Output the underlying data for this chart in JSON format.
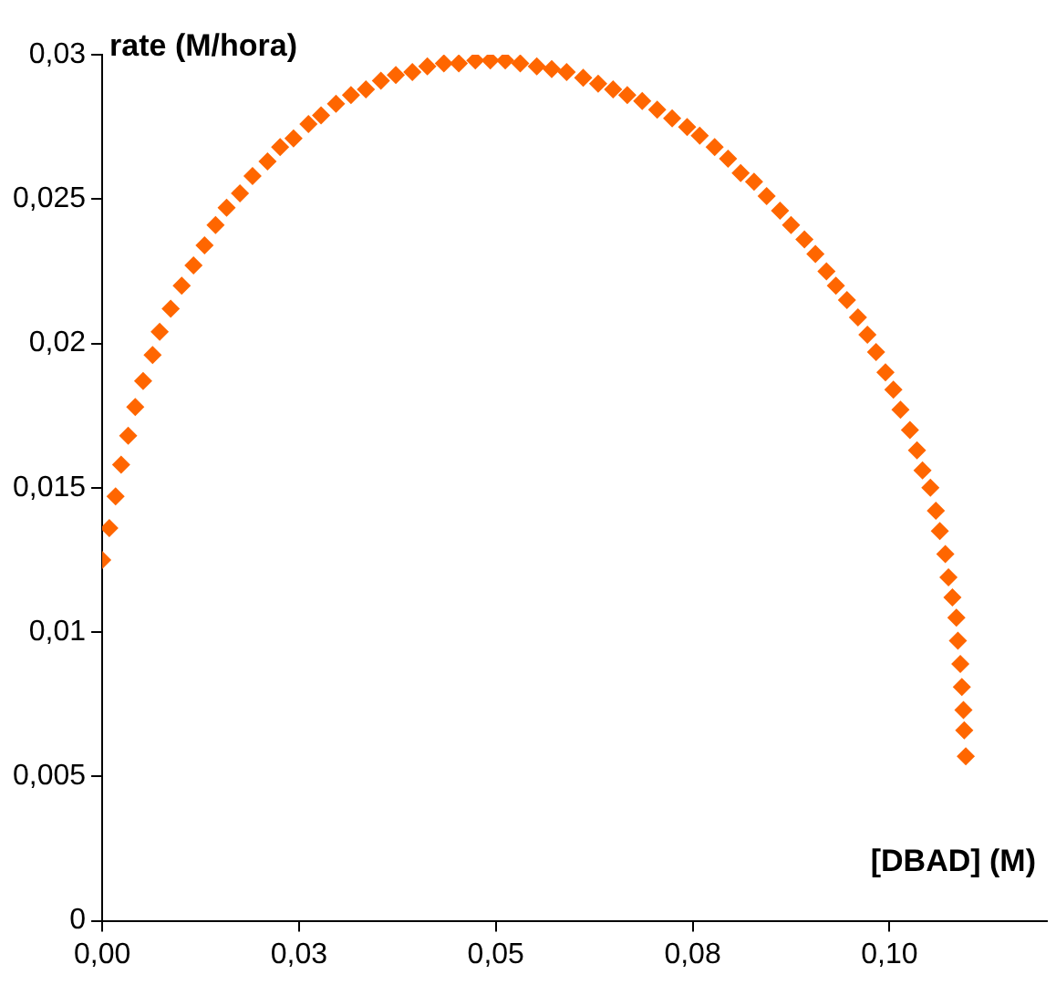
{
  "chart_data": {
    "type": "scatter",
    "xlabel": "[DBAD] (M)",
    "ylabel": "rate (M/hora)",
    "marker": "diamond",
    "grid": false,
    "legend": false,
    "xlim": [
      0,
      0.12
    ],
    "xticks": [
      {
        "value": 0,
        "label": "0,00"
      },
      {
        "value": 0.025,
        "label": "0,03"
      },
      {
        "value": 0.05,
        "label": "0,05"
      },
      {
        "value": 0.075,
        "label": "0,08"
      },
      {
        "value": 0.1,
        "label": "0,10"
      }
    ],
    "ylim": [
      0,
      0.03
    ],
    "yticks": [
      0,
      {
        "value": 0.005,
        "label": "0,005"
      },
      {
        "value": 0.01,
        "label": "0,01"
      },
      {
        "value": 0.015,
        "label": "0,015"
      },
      {
        "value": 0.02,
        "label": "0,02"
      },
      {
        "value": 0.025,
        "label": "0,025"
      },
      {
        "value": 0.03,
        "label": "0,03"
      }
    ],
    "series": [
      {
        "color": "#ff6600",
        "x": [
          0,
          0.0009,
          0.0017,
          0.0024,
          0.0033,
          0.0042,
          0.0052,
          0.0064,
          0.0073,
          0.0087,
          0.0101,
          0.0116,
          0.013,
          0.0144,
          0.0158,
          0.0175,
          0.0191,
          0.021,
          0.0226,
          0.0243,
          0.0262,
          0.0278,
          0.0297,
          0.0316,
          0.0335,
          0.0354,
          0.0373,
          0.0394,
          0.0413,
          0.0434,
          0.0453,
          0.0474,
          0.0493,
          0.0512,
          0.0531,
          0.0552,
          0.0571,
          0.059,
          0.0611,
          0.063,
          0.0649,
          0.0667,
          0.0686,
          0.0705,
          0.0724,
          0.0743,
          0.0759,
          0.0778,
          0.0795,
          0.0811,
          0.0828,
          0.0844,
          0.0861,
          0.0875,
          0.0892,
          0.0906,
          0.092,
          0.0932,
          0.0946,
          0.096,
          0.0972,
          0.0983,
          0.0995,
          0.1005,
          0.1014,
          0.1026,
          0.1035,
          0.1042,
          0.1052,
          0.1059,
          0.1064,
          0.1071,
          0.1075,
          0.108,
          0.1085,
          0.1087,
          0.109,
          0.1092,
          0.1094,
          0.1095,
          0.1097
        ],
        "values": [
          0.0125,
          0.0136,
          0.0147,
          0.0158,
          0.0168,
          0.0178,
          0.0187,
          0.0196,
          0.0204,
          0.0212,
          0.022,
          0.0227,
          0.0234,
          0.0241,
          0.0247,
          0.0252,
          0.0258,
          0.0263,
          0.0268,
          0.0271,
          0.0276,
          0.0279,
          0.0283,
          0.0286,
          0.0288,
          0.0291,
          0.0293,
          0.0294,
          0.0296,
          0.0297,
          0.0297,
          0.0298,
          0.0298,
          0.0298,
          0.0297,
          0.0296,
          0.0295,
          0.0294,
          0.0292,
          0.029,
          0.0288,
          0.0286,
          0.0284,
          0.0281,
          0.0278,
          0.0275,
          0.0272,
          0.0268,
          0.0264,
          0.0259,
          0.0256,
          0.0251,
          0.0246,
          0.0241,
          0.0236,
          0.0231,
          0.0225,
          0.022,
          0.0215,
          0.0209,
          0.0203,
          0.0197,
          0.019,
          0.0184,
          0.0177,
          0.017,
          0.0163,
          0.0156,
          0.015,
          0.0142,
          0.0135,
          0.0127,
          0.0119,
          0.0112,
          0.0105,
          0.0097,
          0.0089,
          0.0081,
          0.0073,
          0.0066,
          0.0057
        ]
      }
    ]
  }
}
